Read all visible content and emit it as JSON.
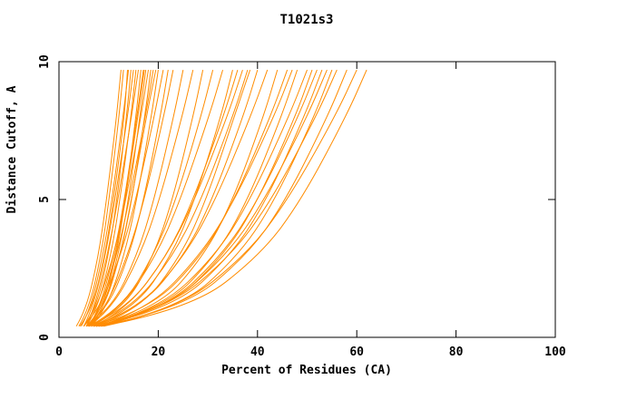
{
  "chart_data": {
    "type": "line",
    "title": "T1021s3",
    "xlabel": "Percent of Residues (CA)",
    "ylabel": "Distance Cutoff, A",
    "xlim": [
      0,
      100
    ],
    "ylim": [
      0,
      10
    ],
    "xticks": [
      0,
      20,
      40,
      60,
      80,
      100
    ],
    "yticks": [
      0,
      5,
      10
    ],
    "grid": false,
    "legend": "none",
    "line_color": "#ff8c00",
    "background": "#ffffff",
    "text_color": "#000000",
    "y_levels": [
      0.4,
      1,
      3,
      5,
      8,
      9.7
    ],
    "series": [
      [
        3.5,
        5.5,
        8.0,
        9.6,
        11.6,
        12.5
      ],
      [
        4.0,
        6.0,
        8.5,
        10.1,
        12.1,
        13.0
      ],
      [
        4.2,
        6.6,
        9.3,
        11.0,
        13.2,
        13.8
      ],
      [
        4.5,
        6.3,
        8.9,
        10.7,
        12.9,
        14.0
      ],
      [
        5.0,
        7.4,
        10.0,
        11.7,
        13.6,
        14.5
      ],
      [
        5.0,
        6.7,
        9.4,
        11.3,
        13.8,
        15.0
      ],
      [
        5.5,
        7.7,
        10.5,
        12.3,
        14.5,
        15.5
      ],
      [
        5.5,
        7.0,
        9.8,
        11.9,
        14.6,
        16.0
      ],
      [
        6.0,
        8.7,
        11.6,
        13.4,
        15.5,
        16.5
      ],
      [
        6.0,
        8.1,
        11.1,
        13.2,
        15.7,
        17.0
      ],
      [
        5.8,
        8.4,
        11.4,
        13.3,
        15.9,
        17.2
      ],
      [
        6.5,
        8.9,
        12.0,
        14.0,
        16.3,
        17.5
      ],
      [
        5.0,
        7.5,
        11.1,
        13.5,
        16.5,
        18.0
      ],
      [
        5.5,
        8.8,
        12.4,
        14.7,
        17.3,
        18.5
      ],
      [
        6.0,
        8.2,
        11.7,
        14.2,
        17.4,
        19.0
      ],
      [
        6.2,
        9.0,
        12.4,
        14.6,
        17.6,
        19.5
      ],
      [
        6.5,
        9.5,
        13.2,
        15.7,
        18.6,
        20.0
      ],
      [
        5.0,
        8.1,
        12.5,
        15.5,
        19.2,
        21.0
      ],
      [
        5.5,
        9.7,
        14.2,
        17.1,
        20.4,
        22.0
      ],
      [
        6.0,
        9.3,
        13.9,
        17.2,
        21.1,
        23.0
      ],
      [
        5.5,
        10.5,
        15.8,
        19.2,
        23.1,
        25.0
      ],
      [
        6.0,
        10.6,
        16.4,
        20.3,
        24.8,
        27.0
      ],
      [
        6.5,
        13.0,
        19.2,
        22.9,
        27.0,
        29.0
      ],
      [
        6.0,
        12.4,
        19.2,
        23.6,
        28.6,
        31.0
      ],
      [
        6.5,
        12.4,
        19.7,
        24.5,
        30.2,
        33.0
      ],
      [
        7.0,
        15.1,
        22.8,
        27.4,
        32.6,
        35.0
      ],
      [
        6.0,
        13.6,
        21.9,
        27.1,
        33.1,
        36.0
      ],
      [
        7.0,
        13.6,
        21.9,
        27.4,
        33.9,
        37.0
      ],
      [
        6.5,
        14.5,
        23.2,
        28.7,
        35.0,
        38.0
      ],
      [
        7.5,
        16.4,
        24.7,
        29.7,
        35.3,
        38.5
      ],
      [
        6.5,
        16.2,
        25.4,
        30.9,
        37.1,
        40.0
      ],
      [
        7.0,
        15.9,
        25.5,
        31.6,
        38.6,
        42.0
      ],
      [
        7.5,
        19.7,
        29.4,
        35.1,
        41.2,
        44.0
      ],
      [
        7.0,
        18.3,
        29.0,
        35.4,
        42.6,
        46.0
      ],
      [
        8.0,
        17.9,
        28.6,
        35.5,
        43.3,
        47.0
      ],
      [
        7.5,
        21.0,
        31.8,
        38.1,
        44.8,
        48.0
      ],
      [
        8.0,
        20.2,
        31.7,
        38.6,
        46.3,
        50.0
      ],
      [
        7.0,
        21.7,
        33.4,
        40.2,
        47.6,
        51.0
      ],
      [
        8.5,
        21.2,
        33.0,
        40.2,
        48.2,
        52.0
      ],
      [
        7.5,
        22.7,
        34.8,
        41.9,
        49.4,
        53.0
      ],
      [
        8.0,
        21.4,
        33.9,
        41.5,
        50.0,
        54.0
      ],
      [
        8.5,
        24.0,
        36.4,
        43.6,
        51.4,
        55.0
      ],
      [
        7.5,
        21.6,
        34.9,
        42.9,
        51.8,
        56.0
      ],
      [
        8.0,
        24.7,
        38.1,
        45.8,
        54.1,
        58.0
      ],
      [
        9.0,
        23.8,
        37.8,
        46.2,
        55.6,
        60.0
      ],
      [
        8.5,
        26.4,
        40.7,
        48.9,
        57.8,
        62.0
      ]
    ]
  }
}
